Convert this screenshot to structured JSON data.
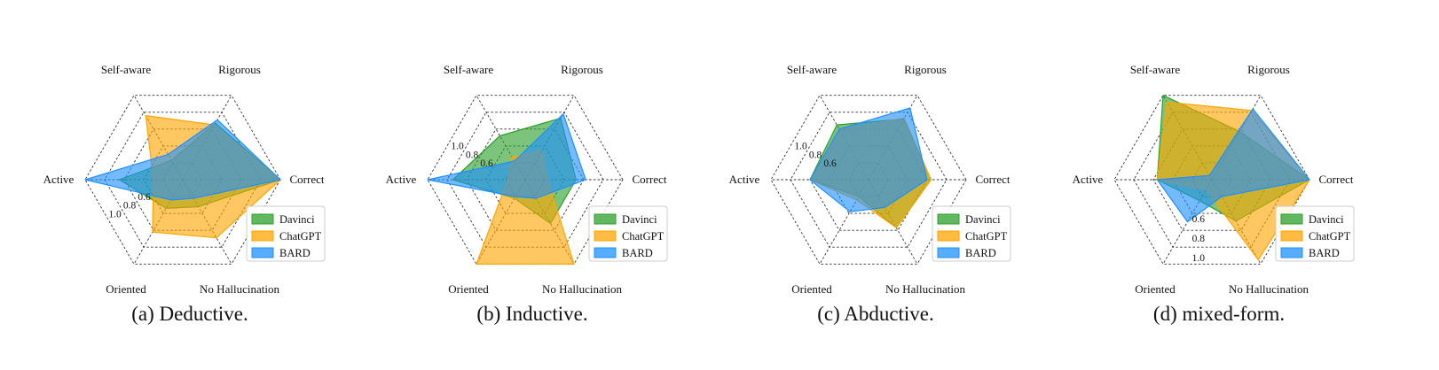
{
  "chart_data": [
    {
      "type": "radar",
      "caption": "(a) Deductive.",
      "axes": [
        "Correct",
        "Rigorous",
        "Self-aware",
        "Active",
        "Oriented",
        "No Hallucination"
      ],
      "rmin": 0.2,
      "rmax": 1.2,
      "rings": [
        0.4,
        0.6,
        0.8,
        1.0,
        1.2
      ],
      "tick_labels": [
        "0.6",
        "0.8",
        "1.0"
      ],
      "tick_label_axis": "Active-Oriented",
      "legend_position": "lower-right",
      "series": [
        {
          "name": "Davinci",
          "values": [
            1.2,
            0.87,
            0.43,
            0.85,
            0.54,
            0.52
          ]
        },
        {
          "name": "ChatGPT",
          "values": [
            1.2,
            0.85,
            0.96,
            0.5,
            0.82,
            0.89
          ]
        },
        {
          "name": "BARD",
          "values": [
            1.2,
            0.91,
            0.5,
            1.2,
            0.44,
            0.42
          ]
        }
      ]
    },
    {
      "type": "radar",
      "caption": "(b) Inductive.",
      "axes": [
        "Correct",
        "Rigorous",
        "Self-aware",
        "Active",
        "Oriented",
        "No Hallucination"
      ],
      "rmin": 0.2,
      "rmax": 1.2,
      "rings": [
        0.4,
        0.6,
        0.8,
        1.0,
        1.2
      ],
      "tick_labels": [
        "0.6",
        "0.8",
        "1.0"
      ],
      "tick_label_axis": "Active-Self-aware",
      "legend_position": "lower-right",
      "series": [
        {
          "name": "Davinci",
          "values": [
            0.72,
            0.93,
            0.72,
            0.94,
            0.42,
            0.72
          ]
        },
        {
          "name": "ChatGPT",
          "values": [
            0.43,
            0.54,
            0.47,
            0.38,
            1.2,
            1.2
          ]
        },
        {
          "name": "BARD",
          "values": [
            0.82,
            0.98,
            0.42,
            1.2,
            0.4,
            0.42
          ]
        }
      ]
    },
    {
      "type": "radar",
      "caption": "(c) Abductive.",
      "axes": [
        "Correct",
        "Rigorous",
        "Self-aware",
        "Active",
        "Oriented",
        "No Hallucination"
      ],
      "rmin": 0.2,
      "rmax": 1.2,
      "rings": [
        0.4,
        0.6,
        0.8,
        1.0,
        1.2
      ],
      "tick_labels": [
        "1.0",
        "0.8",
        "0.6"
      ],
      "tick_label_axis": "Self-aware-Active",
      "legend_position": "lower-right",
      "series": [
        {
          "name": "Davinci",
          "values": [
            0.84,
            0.92,
            0.85,
            0.8,
            0.4,
            0.77
          ]
        },
        {
          "name": "ChatGPT",
          "values": [
            0.84,
            0.93,
            0.8,
            0.8,
            0.44,
            0.77
          ]
        },
        {
          "name": "BARD",
          "values": [
            0.8,
            1.05,
            0.8,
            0.8,
            0.58,
            0.53
          ]
        }
      ]
    },
    {
      "type": "radar",
      "caption": "(d) mixed-form.",
      "axes": [
        "Correct",
        "Rigorous",
        "Self-aware",
        "Active",
        "Oriented",
        "No Hallucination"
      ],
      "rmin": 0.2,
      "rmax": 1.2,
      "rings": [
        0.4,
        0.6,
        0.8,
        1.0,
        1.2
      ],
      "tick_labels": [
        "0.6",
        "0.8",
        "1.0"
      ],
      "tick_label_axis": "No Hallucination-Oriented",
      "legend_position": "lower-right",
      "series": [
        {
          "name": "Davinci",
          "values": [
            1.2,
            0.77,
            1.2,
            0.76,
            0.45,
            0.69
          ]
        },
        {
          "name": "ChatGPT",
          "values": [
            1.2,
            1.02,
            1.12,
            0.76,
            0.32,
            1.15
          ]
        },
        {
          "name": "BARD",
          "values": [
            1.2,
            1.04,
            0.25,
            0.76,
            0.7,
            0.4
          ]
        }
      ]
    }
  ],
  "colors": {
    "Davinci": "#2ca02c",
    "ChatGPT": "#ffa500",
    "BARD": "#1e90ff",
    "grid": "#333333",
    "legend_border": "#cccccc"
  }
}
